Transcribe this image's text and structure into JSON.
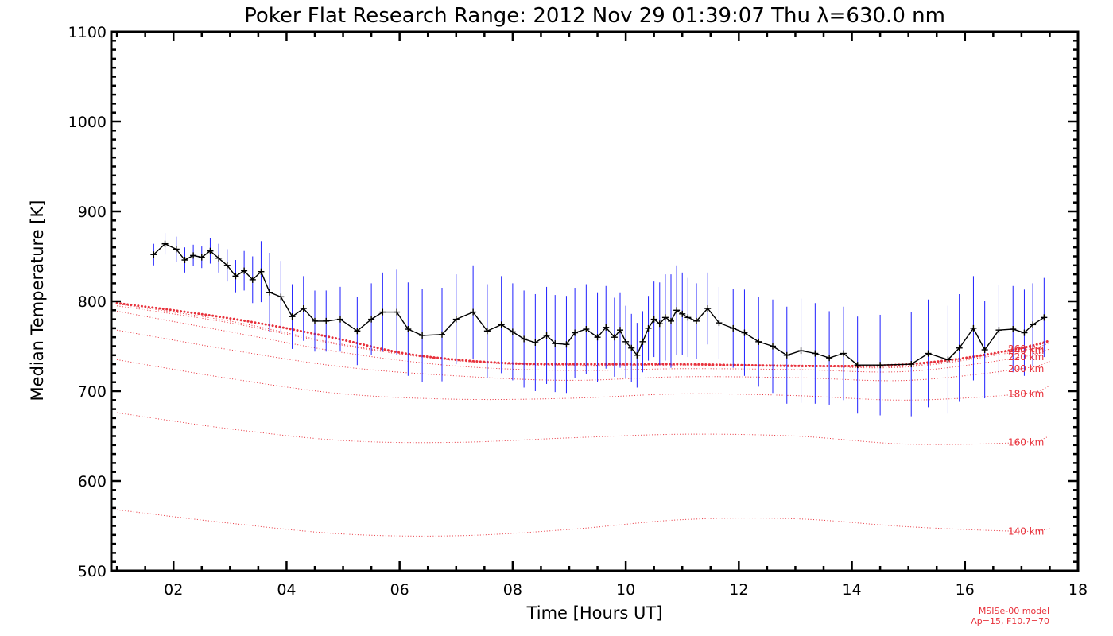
{
  "chart_data": {
    "type": "line",
    "title": "Poker Flat Research Range: 2012 Nov 29 01:39:07 Thu λ=630.0 nm",
    "xlabel": "Time [Hours UT]",
    "ylabel": "Median Temperature [K]",
    "xlim": [
      0.9,
      18.0
    ],
    "ylim": [
      500,
      1100
    ],
    "x_ticks": [
      2,
      4,
      6,
      8,
      10,
      12,
      14,
      16,
      18
    ],
    "x_tick_labels": [
      "02",
      "04",
      "06",
      "08",
      "10",
      "12",
      "14",
      "16",
      "18"
    ],
    "y_ticks": [
      500,
      600,
      700,
      800,
      900,
      1000,
      1100
    ],
    "y_tick_labels": [
      "500",
      "600",
      "700",
      "800",
      "900",
      "1000",
      "1100"
    ],
    "grid": false,
    "colors": {
      "measured": "#000000",
      "error_bars": "#1f1fff",
      "model": "#e8313b"
    },
    "series": [
      {
        "style": "measured-with-error-bars",
        "x": [
          1.65,
          1.85,
          2.05,
          2.2,
          2.35,
          2.5,
          2.65,
          2.8,
          2.95,
          3.1,
          3.25,
          3.4,
          3.55,
          3.7,
          3.9,
          4.1,
          4.3,
          4.5,
          4.7,
          4.95,
          5.25,
          5.5,
          5.7,
          5.95,
          6.15,
          6.4,
          6.75,
          7.0,
          7.3,
          7.55,
          7.8,
          8.0,
          8.2,
          8.4,
          8.6,
          8.75,
          8.95,
          9.1,
          9.3,
          9.5,
          9.65,
          9.8,
          9.9,
          10.0,
          10.1,
          10.2,
          10.3,
          10.4,
          10.5,
          10.6,
          10.7,
          10.8,
          10.9,
          11.0,
          11.1,
          11.25,
          11.45,
          11.65,
          11.9,
          12.1,
          12.35,
          12.6,
          12.85,
          13.1,
          13.35,
          13.6,
          13.85,
          14.1,
          14.5,
          15.05,
          15.35,
          15.7,
          15.9,
          16.15,
          16.35,
          16.6,
          16.85,
          17.05,
          17.2,
          17.4
        ],
        "y": [
          852,
          864,
          858,
          846,
          851,
          849,
          856,
          848,
          840,
          828,
          834,
          824,
          833,
          810,
          805,
          783,
          792,
          778,
          778,
          780,
          767,
          780,
          788,
          788,
          769,
          762,
          763,
          780,
          788,
          767,
          774,
          766,
          758,
          754,
          762,
          753,
          752,
          765,
          769,
          760,
          771,
          760,
          768,
          755,
          748,
          740,
          755,
          770,
          780,
          775,
          782,
          778,
          790,
          786,
          782,
          778,
          792,
          776,
          770,
          765,
          755,
          750,
          740,
          745,
          742,
          737,
          742,
          729,
          729,
          730,
          742,
          735,
          748,
          770,
          746,
          768,
          769,
          765,
          774,
          782
        ],
        "err": [
          12,
          12,
          14,
          14,
          12,
          12,
          14,
          16,
          18,
          18,
          22,
          26,
          34,
          44,
          40,
          36,
          36,
          34,
          34,
          36,
          38,
          40,
          44,
          48,
          52,
          52,
          52,
          50,
          52,
          52,
          54,
          54,
          54,
          54,
          54,
          54,
          54,
          50,
          50,
          50,
          46,
          44,
          42,
          40,
          38,
          36,
          34,
          36,
          42,
          46,
          48,
          52,
          50,
          46,
          44,
          42,
          40,
          40,
          44,
          48,
          50,
          52,
          54,
          58,
          56,
          52,
          52,
          54,
          56,
          58,
          60,
          60,
          60,
          58,
          54,
          50,
          48,
          48,
          46,
          44
        ]
      },
      {
        "name": "140 km",
        "style": "model-dotted",
        "x": [
          1,
          3,
          5,
          7,
          9,
          11,
          13,
          15,
          17,
          17.5
        ],
        "y": [
          568,
          553,
          541,
          539,
          546,
          557,
          558,
          549,
          544,
          547
        ]
      },
      {
        "name": "160 km",
        "style": "model-dotted",
        "x": [
          1,
          3,
          5,
          7,
          9,
          11,
          13,
          15,
          17,
          17.5
        ],
        "y": [
          676,
          658,
          645,
          643,
          648,
          652,
          650,
          641,
          643,
          650
        ]
      },
      {
        "name": "180 km",
        "style": "model-dotted",
        "x": [
          1,
          3,
          5,
          7,
          9,
          11,
          13,
          15,
          17,
          17.5
        ],
        "y": [
          735,
          714,
          697,
          691,
          692,
          697,
          695,
          690,
          697,
          706
        ]
      },
      {
        "name": "200 km",
        "style": "model-dotted",
        "x": [
          1,
          3,
          5,
          7,
          9,
          11,
          13,
          15,
          17,
          17.5
        ],
        "y": [
          768,
          746,
          727,
          717,
          712,
          716,
          715,
          712,
          725,
          733
        ]
      },
      {
        "name": "220 km",
        "style": "model-dotted",
        "x": [
          1,
          3,
          5,
          7,
          9,
          11,
          13,
          15,
          17,
          17.5
        ],
        "y": [
          789,
          766,
          743,
          728,
          723,
          725,
          724,
          722,
          738,
          747
        ]
      },
      {
        "name": "240 km",
        "style": "model-dotted",
        "x": [
          1,
          3,
          5,
          7,
          9,
          11,
          13,
          15,
          17,
          17.5
        ],
        "y": [
          795,
          776,
          751,
          734,
          728,
          729,
          728,
          727,
          745,
          754
        ]
      },
      {
        "name": "260 km",
        "style": "model-dotted",
        "x": [
          1,
          3,
          5,
          7,
          9,
          11,
          13,
          15,
          17,
          17.5
        ],
        "y": [
          797,
          778,
          752,
          735,
          729,
          730,
          729,
          728,
          747,
          756
        ]
      },
      {
        "style": "model-bold-dotted",
        "x": [
          1,
          2,
          3,
          4,
          5,
          6,
          7,
          8,
          9,
          10,
          11,
          12,
          13,
          14,
          15,
          16,
          17,
          17.5
        ],
        "y": [
          798,
          790,
          781,
          770,
          757,
          743,
          735,
          731,
          730,
          730,
          730,
          729,
          728,
          728,
          730,
          737,
          748,
          756
        ]
      }
    ],
    "altitude_labels": [
      "140 km",
      "160 km",
      "180 km",
      "200 km",
      "220 km",
      "240 km",
      "260 km"
    ],
    "annotations": [
      "MSISe-00 model",
      "Ap=15, F10.7=70"
    ]
  }
}
